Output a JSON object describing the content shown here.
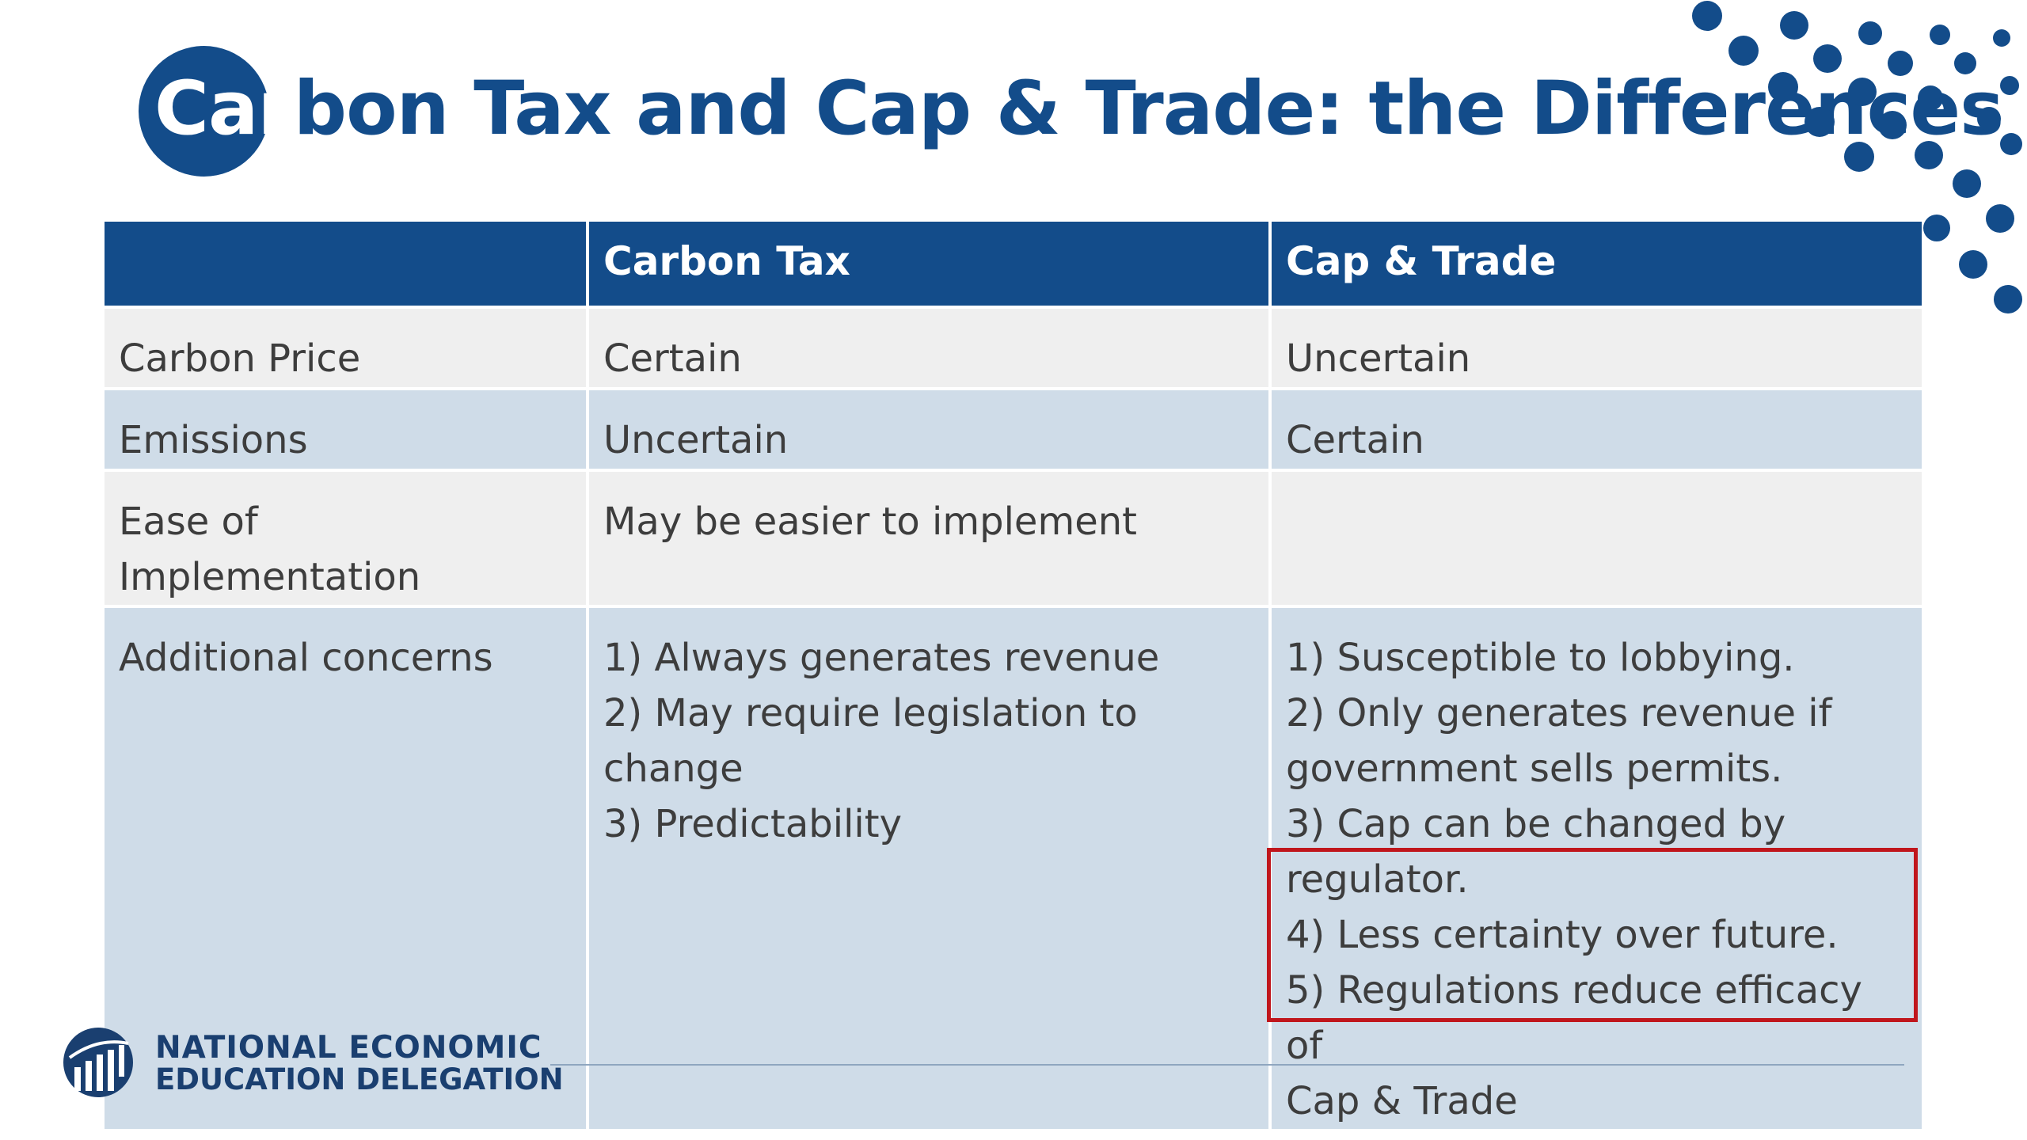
{
  "slide": {
    "title_highlight": "Car",
    "title_rest": "bon Tax and Cap & Trade: the Differences"
  },
  "table": {
    "headers": [
      "",
      "Carbon Tax",
      "Cap & Trade"
    ],
    "rows": [
      {
        "label": "Carbon Price",
        "carbon_tax": "Certain",
        "cap_trade": "Uncertain"
      },
      {
        "label": "Emissions",
        "carbon_tax": "Uncertain",
        "cap_trade": "Certain"
      },
      {
        "label": "Ease of Implementation",
        "carbon_tax": "May be easier to implement",
        "cap_trade": ""
      },
      {
        "label": "Additional concerns",
        "carbon_tax_lines": [
          "1) Always generates revenue",
          "2) May require legislation to",
          "change",
          "3) Predictability"
        ],
        "cap_trade_lines": [
          "1) Susceptible to lobbying.",
          "2) Only generates revenue if",
          "government sells permits.",
          "3) Cap can be changed by",
          "regulator.",
          "4) Less certainty over future.",
          "5) Regulations reduce efficacy of",
          "Cap & Trade"
        ]
      }
    ]
  },
  "footer": {
    "org_line1": "NATIONAL ECONOMIC",
    "org_line2": "EDUCATION DELEGATION",
    "logo_icon": "column-chart-globe-icon"
  },
  "colors": {
    "brand_blue": "#134c8a",
    "row_blue": "#cfdce8",
    "row_light": "#efefef",
    "highlight_red": "#c0161c"
  }
}
